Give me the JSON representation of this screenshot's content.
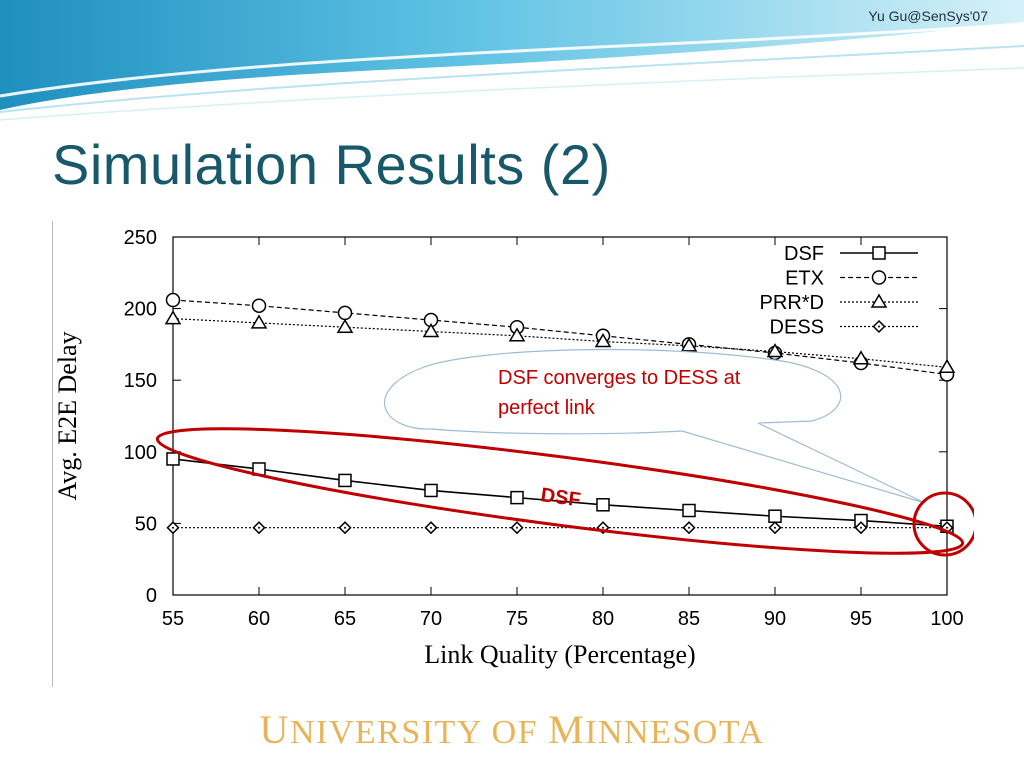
{
  "header": {
    "credit": "Yu Gu@SenSys'07",
    "title": "Simulation Results (2)"
  },
  "footer": {
    "logo_text": "University of Minnesota"
  },
  "callout": {
    "text_line1": "DSF converges to DESS at",
    "text_line2": "perfect link",
    "dsf_tag": "DSF"
  },
  "colors": {
    "title": "#17596b",
    "accent_red": "#c00000",
    "footer_gold": "#e8b45a",
    "header_blue": "#5ab6d8"
  },
  "chart_data": {
    "type": "line",
    "xlabel": "Link Quality (Percentage)",
    "ylabel": "Avg. E2E Delay",
    "x": [
      55,
      60,
      65,
      70,
      75,
      80,
      85,
      90,
      95,
      100
    ],
    "xlim": [
      55,
      100
    ],
    "ylim": [
      0,
      250
    ],
    "xticks": [
      "55",
      "60",
      "65",
      "70",
      "75",
      "80",
      "85",
      "90",
      "95",
      "100"
    ],
    "yticks": [
      "0",
      "50",
      "100",
      "150",
      "200",
      "250"
    ],
    "grid": false,
    "legend_position": "top-right",
    "series": [
      {
        "name": "DSF",
        "marker": "square",
        "style": "solid",
        "values": [
          95,
          88,
          80,
          73,
          68,
          63,
          59,
          55,
          52,
          48
        ]
      },
      {
        "name": "ETX",
        "marker": "circle",
        "style": "dashed",
        "values": [
          206,
          202,
          197,
          192,
          187,
          181,
          175,
          169,
          162,
          154
        ]
      },
      {
        "name": "PRR*D",
        "marker": "triangle",
        "style": "dotted",
        "values": [
          193,
          190,
          187,
          184,
          181,
          177,
          174,
          170,
          165,
          159
        ]
      },
      {
        "name": "DESS",
        "marker": "diamond",
        "style": "dotted",
        "values": [
          47,
          47,
          47,
          47,
          47,
          47,
          47,
          47,
          47,
          47
        ]
      }
    ]
  }
}
